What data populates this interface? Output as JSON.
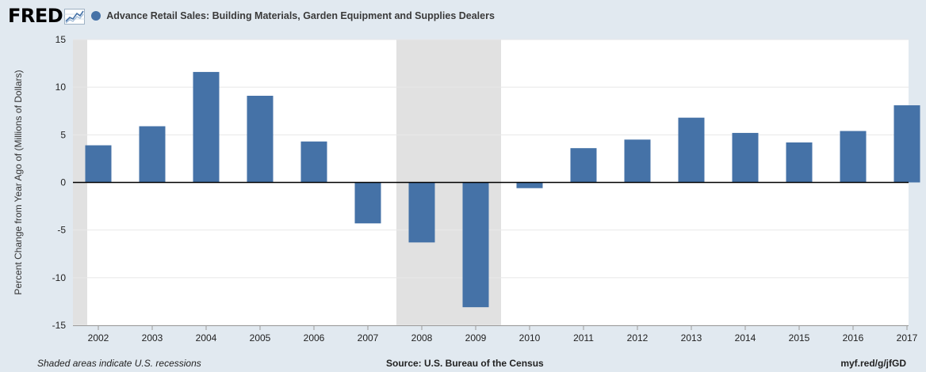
{
  "header": {
    "logo_text": "FRED",
    "logo_icon": "trend-graph-icon",
    "series_title": "Advance Retail Sales: Building Materials, Garden Equipment and Supplies Dealers",
    "series_color": "#4572a7"
  },
  "colors": {
    "bar": "#4572a7",
    "recession": "#e1e1e1",
    "plot_bg": "#ffffff",
    "grid": "#e8e8e8",
    "zero_line": "#000000"
  },
  "chart_data": {
    "type": "bar",
    "title": "Advance Retail Sales: Building Materials, Garden Equipment and Supplies Dealers",
    "xlabel": "",
    "ylabel": "Percent Change from Year Ago of (Millions of Dollars)",
    "categories": [
      "2002",
      "2003",
      "2004",
      "2005",
      "2006",
      "2007",
      "2008",
      "2009",
      "2010",
      "2011",
      "2012",
      "2013",
      "2014",
      "2015",
      "2016",
      "2017"
    ],
    "values": [
      3.9,
      5.9,
      11.6,
      9.1,
      4.3,
      -4.3,
      -6.3,
      -13.1,
      -0.6,
      3.6,
      4.5,
      6.8,
      5.2,
      4.2,
      5.4,
      8.1
    ],
    "ylim": [
      -15,
      15
    ],
    "yticks": [
      15,
      10,
      5,
      0,
      -5,
      -10,
      -15
    ],
    "grid": true,
    "recession": {
      "start": "2008",
      "end": "2009"
    }
  },
  "footer": {
    "left": "Shaded areas indicate U.S. recessions",
    "center": "Source: U.S. Bureau of the Census",
    "right": "myf.red/g/jfGD"
  }
}
